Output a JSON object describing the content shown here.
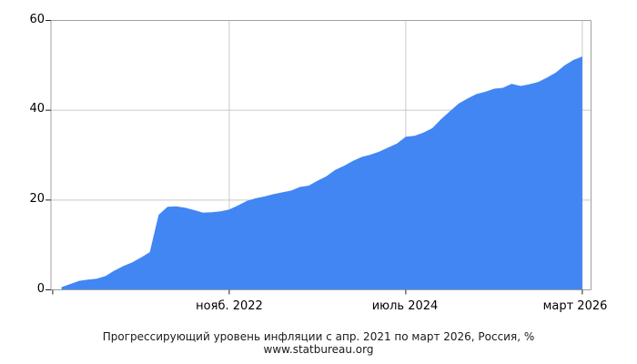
{
  "chart_data": {
    "type": "area",
    "title": "Прогрессирующий уровень инфляции с апр. 2021 по март 2026, Россия, %",
    "source": "www.statbureau.org",
    "series_name": "Прогрессирующий уровень инфляции, Россия",
    "x_unit": "month",
    "x_range": [
      "2021-04",
      "2026-03"
    ],
    "values": [
      0.6,
      1.3,
      2.0,
      2.3,
      2.5,
      3.1,
      4.3,
      5.3,
      6.1,
      7.2,
      8.4,
      16.7,
      18.5,
      18.6,
      18.3,
      17.8,
      17.2,
      17.3,
      17.5,
      17.9,
      18.8,
      19.8,
      20.4,
      20.8,
      21.3,
      21.7,
      22.1,
      22.9,
      23.2,
      24.3,
      25.3,
      26.7,
      27.6,
      28.7,
      29.6,
      30.1,
      30.8,
      31.7,
      32.6,
      34.1,
      34.3,
      35.0,
      36.0,
      38.0,
      39.8,
      41.5,
      42.6,
      43.6,
      44.1,
      44.8,
      45.0,
      45.9,
      45.4,
      45.8,
      46.3,
      47.3,
      48.4,
      50.0,
      51.2,
      52.0
    ],
    "ylim": [
      0,
      60
    ],
    "yticks": [
      0,
      20,
      40,
      60
    ],
    "xticks": [
      {
        "month_index": 19,
        "label": "нояб. 2022"
      },
      {
        "month_index": 39,
        "label": "июль 2024"
      },
      {
        "month_index": 59,
        "label": "март 2026"
      }
    ],
    "grid": "on",
    "legend": "none",
    "colors": {
      "area": "#4286f4",
      "grid": "#c9c9c9",
      "frame": "#a0a0a0",
      "tick": "#222222",
      "text": "#000000"
    }
  }
}
